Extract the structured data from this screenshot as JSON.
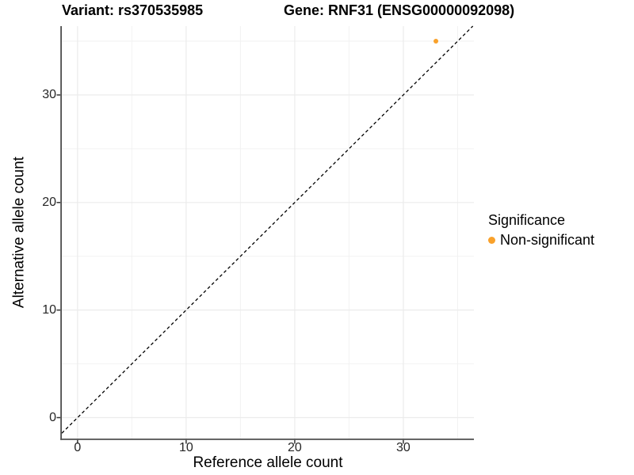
{
  "titles": {
    "variant": "Variant: rs370535985",
    "gene": "Gene: RNF31 (ENSG00000092098)"
  },
  "chart_data": {
    "type": "scatter",
    "xlabel": "Reference allele count",
    "ylabel": "Alternative allele count",
    "xlim": [
      -1.45,
      36.5
    ],
    "ylim": [
      -1.95,
      36.4
    ],
    "x_ticks": [
      0,
      10,
      20,
      30
    ],
    "y_ticks": [
      0,
      10,
      20,
      30
    ],
    "x_minor_ticks": [
      5,
      15,
      25,
      35
    ],
    "y_minor_ticks": [
      5,
      15,
      25,
      35
    ],
    "grid": true,
    "series": [
      {
        "name": "Non-significant",
        "points": [
          {
            "x": 33,
            "y": 35
          }
        ]
      }
    ],
    "reference_line": {
      "type": "identity",
      "slope": 1,
      "intercept": 0,
      "style": "dashed"
    },
    "legend": {
      "title": "Significance",
      "position": "right",
      "items": [
        {
          "label": "Non-significant",
          "color": "#F9A12B"
        }
      ]
    }
  },
  "colors": {
    "point": "#F9A12B",
    "axis_line": "#4d4d4d",
    "tick_mark": "#333333",
    "dash_line": "#000000",
    "grid_major": "#ebebeb",
    "grid_minor": "#f2f2f2",
    "background": "#ffffff"
  }
}
